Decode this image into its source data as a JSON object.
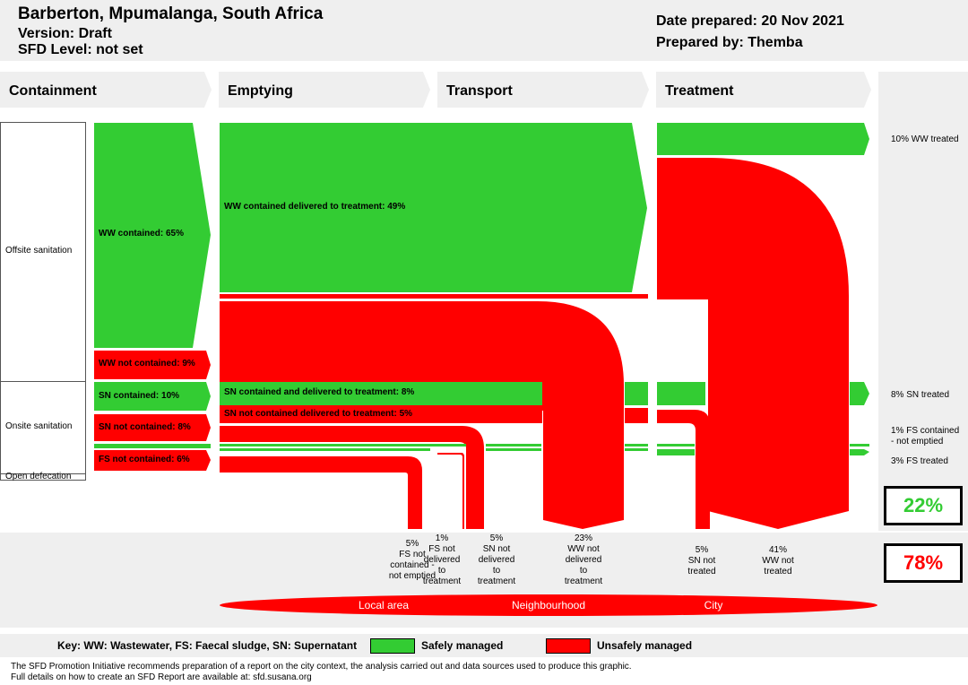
{
  "header": {
    "city": "Barberton, Mpumalanga, South Africa",
    "version": "Version: Draft",
    "sfd_level": "SFD Level: not set",
    "date_prepared": "Date prepared: 20 Nov 2021",
    "prepared_by": "Prepared by: Themba"
  },
  "stages": [
    "Containment",
    "Emptying",
    "Transport",
    "Treatment"
  ],
  "rows": {
    "offsite": "Offsite sanitation",
    "onsite": "Onsite sanitation",
    "open": "Open defecation"
  },
  "flows": {
    "ww_contained": "WW contained: 65%",
    "ww_not_contained": "WW not contained: 9%",
    "sn_contained": "SN contained: 10%",
    "sn_not_contained": "SN not contained: 8%",
    "fs_not_contained": "FS not contained: 6%",
    "ww_delivered": "WW contained delivered to treatment: 49%",
    "sn_delivered": "SN contained and delivered to treatment: 8%",
    "sn_not_contained_delivered": "SN not contained delivered to treatment: 5%"
  },
  "outcomes": {
    "ww_treated": "10% WW treated",
    "sn_treated": "8% SN treated",
    "fs_contained_not_emptied": "1% FS contained - not emptied",
    "fs_treated": "3% FS treated"
  },
  "losses": {
    "fs_not_contained_not_emptied": [
      "5%",
      "FS not",
      "contained -",
      "not emptied"
    ],
    "fs_not_delivered": [
      "1%",
      "FS not",
      "delivered",
      "to",
      "treatment"
    ],
    "sn_not_delivered": [
      "5%",
      "SN not",
      "delivered",
      "to",
      "treatment"
    ],
    "ww_not_delivered": [
      "23%",
      "WW not",
      "delivered",
      "to",
      "treatment"
    ],
    "sn_not_treated": [
      "5%",
      "SN not",
      "treated"
    ],
    "ww_not_treated": [
      "41%",
      "WW not",
      "treated"
    ]
  },
  "areas": [
    "Local area",
    "Neighbourhood",
    "City"
  ],
  "totals": {
    "safe": "22%",
    "unsafe": "78%"
  },
  "key": {
    "abbrev": "Key: WW: Wastewater, FS: Faecal sludge, SN: Supernatant",
    "safe_label": "Safely managed",
    "unsafe_label": "Unsafely managed"
  },
  "footer": {
    "line1": "The SFD Promotion Initiative recommends preparation of a report on the city context, the analysis carried out and data sources used to produce this graphic.",
    "line2": "Full details on how to create an SFD Report are available at: sfd.susana.org"
  },
  "colors": {
    "safe": "#33cc33",
    "unsafe": "#ff0000",
    "panel": "#efefef"
  }
}
